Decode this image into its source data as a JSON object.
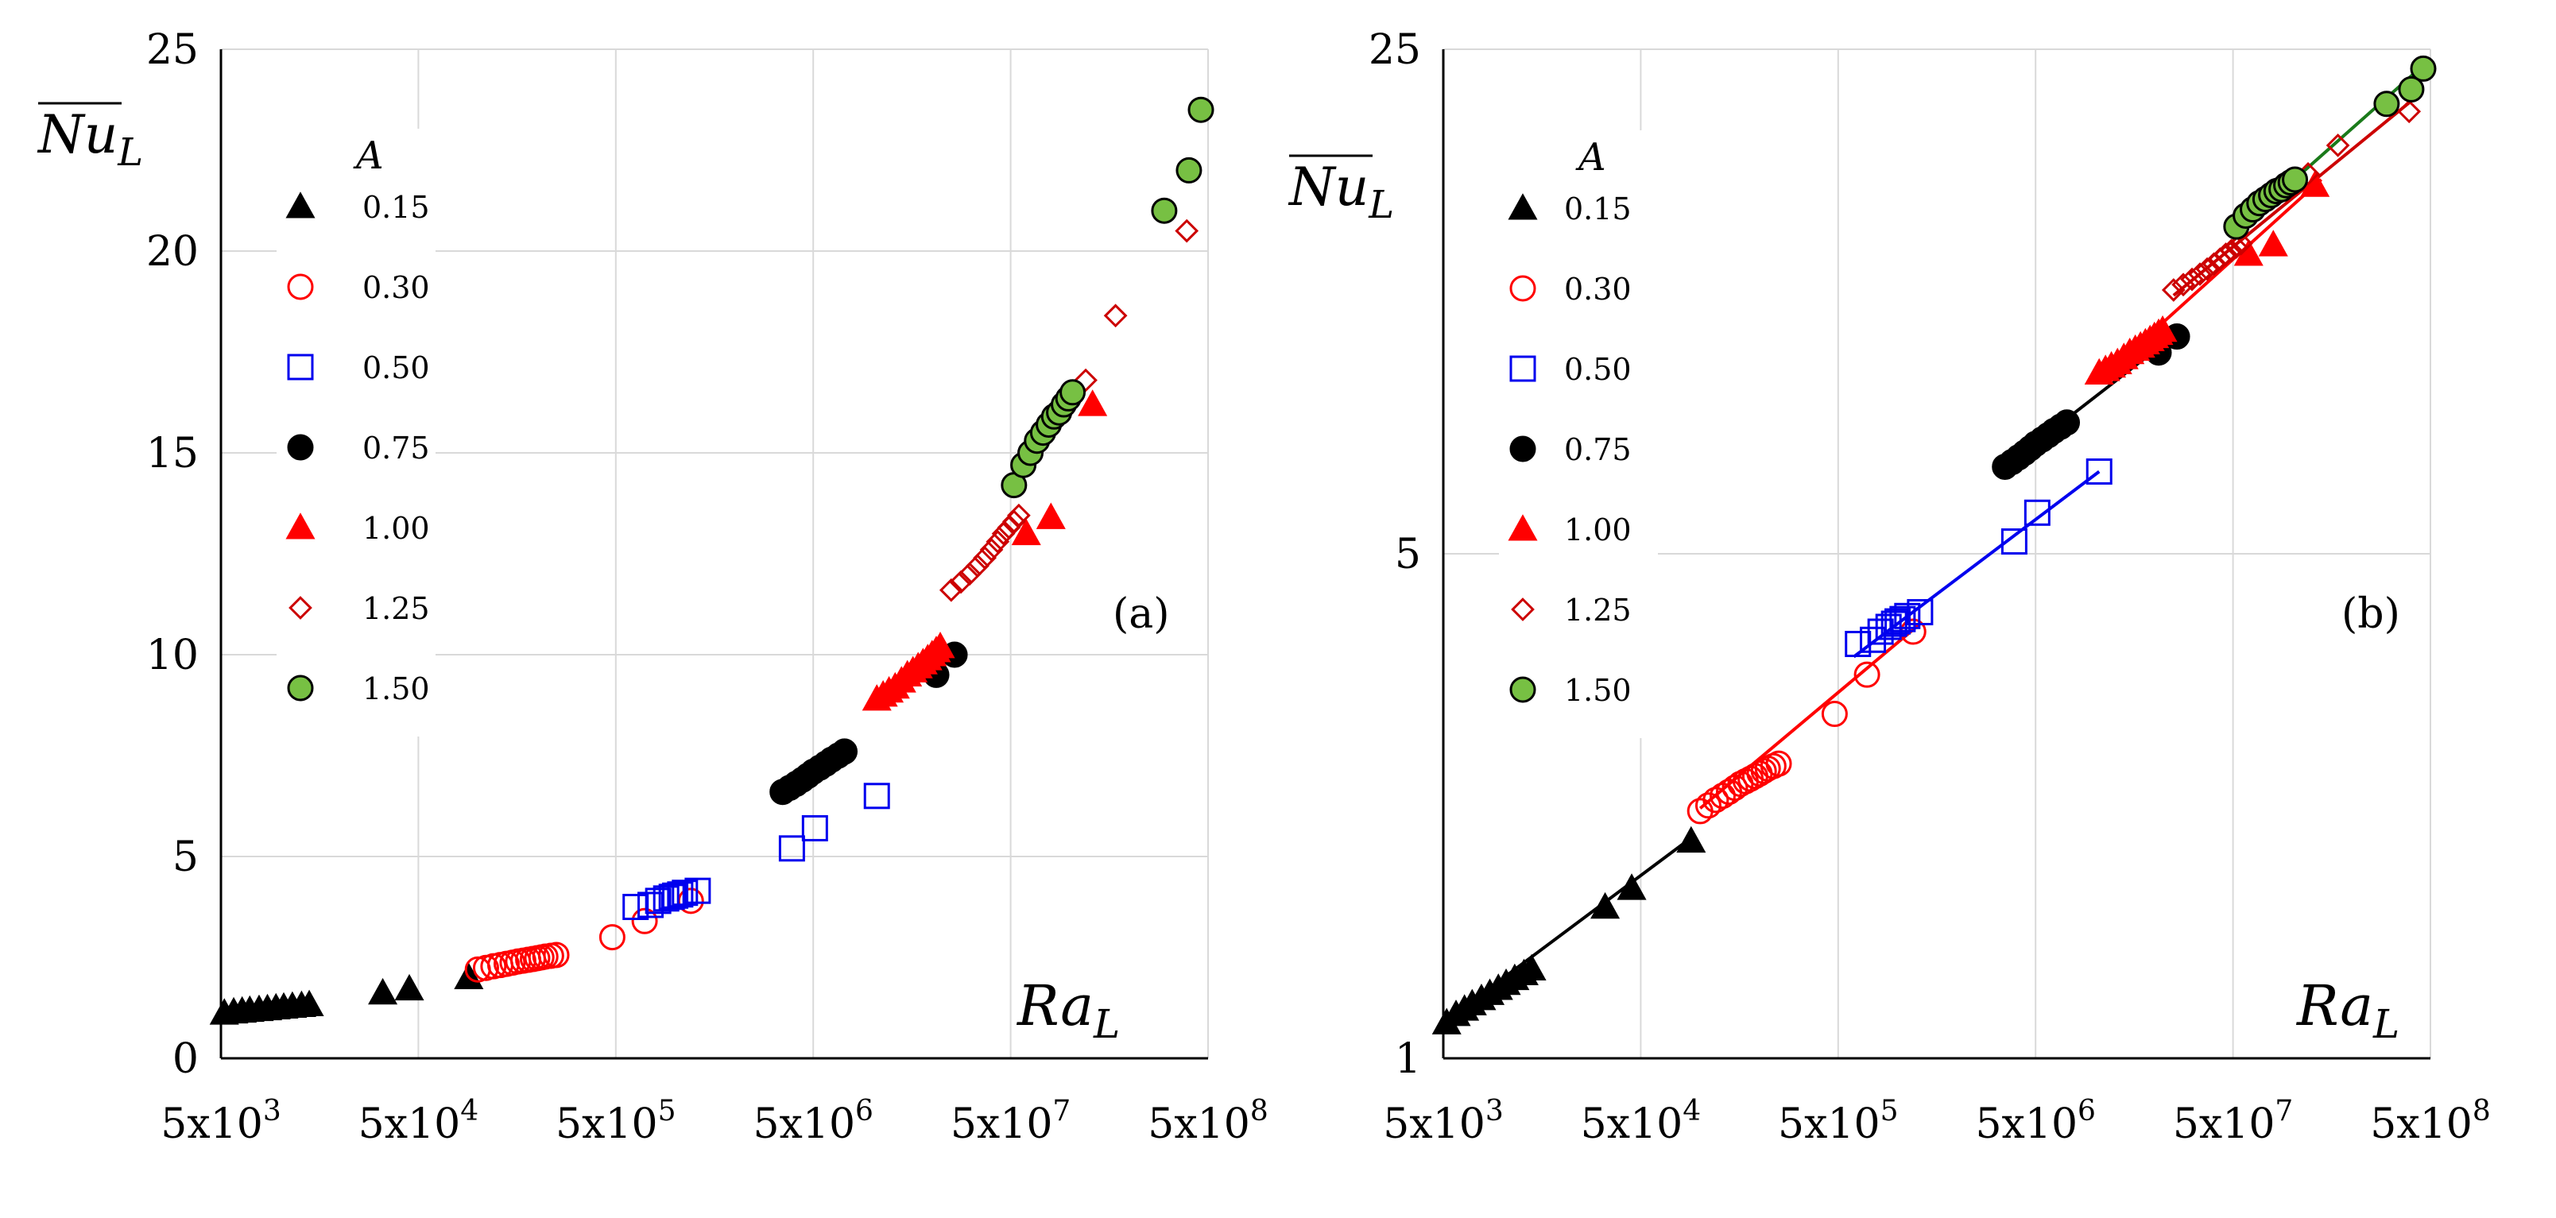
{
  "chart_data": [
    {
      "panel": "(a)",
      "type": "scatter",
      "xscale": "log",
      "yscale": "linear",
      "xlim": [
        5000,
        500000000
      ],
      "ylim": [
        0,
        25
      ],
      "xticks": [
        "5x10^3",
        "5x10^4",
        "5x10^5",
        "5x10^6",
        "5x10^7",
        "5x10^8"
      ],
      "yticks": [
        "0",
        "5",
        "10",
        "15",
        "20",
        "25"
      ],
      "ylabel_main": "Nu",
      "ylabel_sub": "L",
      "xlabel_main": "Ra",
      "xlabel_sub": "L",
      "legend_title": "A",
      "series": [
        {
          "name": "0.15",
          "marker": "triangle",
          "color": "#000000",
          "fill": "#000000",
          "x": [
            5200,
            5800,
            6400,
            7000,
            7800,
            8600,
            9500,
            10400,
            11500,
            12800,
            14000,
            33000,
            45000,
            90000
          ],
          "y": [
            1.12,
            1.15,
            1.17,
            1.19,
            1.21,
            1.23,
            1.25,
            1.27,
            1.29,
            1.31,
            1.33,
            1.62,
            1.72,
            2.0
          ]
        },
        {
          "name": "0.30",
          "marker": "circle",
          "color": "#ff0000",
          "fill": "none",
          "x": [
            100000,
            110000,
            120000,
            130000,
            140000,
            150000,
            160000,
            170000,
            180000,
            190000,
            200000,
            210000,
            220000,
            235000,
            250000,
            480000,
            700000,
            1200000
          ],
          "y": [
            2.2,
            2.24,
            2.28,
            2.31,
            2.34,
            2.37,
            2.4,
            2.42,
            2.44,
            2.46,
            2.48,
            2.5,
            2.52,
            2.54,
            2.56,
            3.0,
            3.4,
            3.9
          ]
        },
        {
          "name": "0.50",
          "marker": "square",
          "color": "#0000ee",
          "fill": "none",
          "x": [
            630000,
            750000,
            820000,
            900000,
            960000,
            1000000,
            1060000,
            1120000,
            1300000,
            3900000,
            5100000,
            10500000
          ],
          "y": [
            3.75,
            3.8,
            3.9,
            3.96,
            4.0,
            4.03,
            4.06,
            4.1,
            4.15,
            5.2,
            5.7,
            6.5
          ]
        },
        {
          "name": "0.75",
          "marker": "circle",
          "color": "#000000",
          "fill": "#000000",
          "x": [
            3500000,
            3800000,
            4100000,
            4400000,
            4700000,
            5000000,
            5400000,
            5800000,
            6200000,
            6700000,
            7200000,
            21000000,
            26000000
          ],
          "y": [
            6.6,
            6.7,
            6.8,
            6.9,
            7.0,
            7.1,
            7.2,
            7.3,
            7.4,
            7.5,
            7.6,
            9.5,
            10.0
          ]
        },
        {
          "name": "1.00",
          "marker": "triangle",
          "color": "#ff0000",
          "fill": "#ff0000",
          "x": [
            10500000,
            11300000,
            12100000,
            13000000,
            14000000,
            15000000,
            16000000,
            17000000,
            18000000,
            19000000,
            20000000,
            21000000,
            22000000,
            60000000,
            80000000,
            130000000
          ],
          "y": [
            8.9,
            9.0,
            9.1,
            9.2,
            9.35,
            9.5,
            9.6,
            9.7,
            9.8,
            9.9,
            10.0,
            10.1,
            10.2,
            13.0,
            13.4,
            16.2
          ]
        },
        {
          "name": "1.25",
          "marker": "diamond",
          "color": "#cc0000",
          "fill": "none",
          "x": [
            25000000,
            28000000,
            31000000,
            34000000,
            37000000,
            40000000,
            43000000,
            46000000,
            49000000,
            52000000,
            55000000,
            120000000,
            170000000,
            390000000
          ],
          "y": [
            11.6,
            11.8,
            12.0,
            12.2,
            12.4,
            12.6,
            12.8,
            13.0,
            13.15,
            13.3,
            13.45,
            16.8,
            18.4,
            20.5
          ]
        },
        {
          "name": "1.50",
          "marker": "circle",
          "color": "#000000",
          "fill": "#77c043",
          "x": [
            52000000,
            58000000,
            63000000,
            68000000,
            73000000,
            78000000,
            83000000,
            88000000,
            93000000,
            98000000,
            103000000,
            300000000,
            400000000,
            460000000
          ],
          "y": [
            14.2,
            14.7,
            15.0,
            15.3,
            15.5,
            15.7,
            15.9,
            16.0,
            16.2,
            16.35,
            16.5,
            21.0,
            22.0,
            23.5
          ]
        }
      ],
      "legend_items": [
        "0.15",
        "0.30",
        "0.50",
        "0.75",
        "1.00",
        "1.25",
        "1.50"
      ]
    },
    {
      "panel": "(b)",
      "type": "scatter",
      "xscale": "log",
      "yscale": "log",
      "xlim": [
        5000,
        500000000
      ],
      "ylim": [
        1,
        25
      ],
      "xticks": [
        "5x10^3",
        "5x10^4",
        "5x10^5",
        "5x10^6",
        "5x10^7",
        "5x10^8"
      ],
      "yticks": [
        "1",
        "5",
        "25"
      ],
      "ylabel_main": "Nu",
      "ylabel_sub": "L",
      "xlabel_main": "Ra",
      "xlabel_sub": "L",
      "legend_title": "A",
      "fit_lines": [
        {
          "name": "0.15",
          "color": "#000000",
          "x": [
            5000,
            90000
          ],
          "y": [
            1.12,
            2.02
          ]
        },
        {
          "name": "0.30",
          "color": "#ff0000",
          "x": [
            100000,
            1300000
          ],
          "y": [
            2.22,
            4.0
          ]
        },
        {
          "name": "0.50",
          "color": "#0000ee",
          "x": [
            600000,
            10500000
          ],
          "y": [
            3.6,
            6.5
          ]
        },
        {
          "name": "0.75",
          "color": "#000000",
          "x": [
            3500000,
            26000000
          ],
          "y": [
            6.6,
            10.1
          ]
        },
        {
          "name": "1.00",
          "color": "#ff0000",
          "x": [
            10500000,
            140000000
          ],
          "y": [
            8.7,
            16.5
          ]
        },
        {
          "name": "1.25",
          "color": "#cc0000",
          "x": [
            25000000,
            400000000
          ],
          "y": [
            11.4,
            21.2
          ]
        },
        {
          "name": "1.50",
          "color": "#1a7a1a",
          "x": [
            52000000,
            480000000
          ],
          "y": [
            14.0,
            24.0
          ]
        }
      ],
      "series": [
        {
          "name": "0.15",
          "marker": "triangle",
          "color": "#000000",
          "fill": "#000000",
          "x": [
            5200,
            5800,
            6400,
            7000,
            7800,
            8600,
            9500,
            10400,
            11500,
            12800,
            14000,
            33000,
            45000,
            90000
          ],
          "y": [
            1.12,
            1.15,
            1.17,
            1.19,
            1.21,
            1.23,
            1.25,
            1.27,
            1.29,
            1.31,
            1.33,
            1.62,
            1.72,
            2.0
          ]
        },
        {
          "name": "0.30",
          "marker": "circle",
          "color": "#ff0000",
          "fill": "none",
          "x": [
            100000,
            110000,
            120000,
            130000,
            140000,
            150000,
            160000,
            170000,
            180000,
            190000,
            200000,
            210000,
            220000,
            235000,
            250000,
            480000,
            700000,
            1200000
          ],
          "y": [
            2.2,
            2.24,
            2.28,
            2.31,
            2.34,
            2.37,
            2.4,
            2.42,
            2.44,
            2.46,
            2.48,
            2.5,
            2.52,
            2.54,
            2.56,
            3.0,
            3.4,
            3.9
          ]
        },
        {
          "name": "0.50",
          "marker": "square",
          "color": "#0000ee",
          "fill": "none",
          "x": [
            630000,
            750000,
            820000,
            900000,
            960000,
            1000000,
            1060000,
            1120000,
            1300000,
            3900000,
            5100000,
            10500000
          ],
          "y": [
            3.75,
            3.8,
            3.9,
            3.96,
            4.0,
            4.03,
            4.06,
            4.1,
            4.15,
            5.2,
            5.7,
            6.5
          ]
        },
        {
          "name": "0.75",
          "marker": "circle",
          "color": "#000000",
          "fill": "#000000",
          "x": [
            3500000,
            3800000,
            4100000,
            4400000,
            4700000,
            5000000,
            5400000,
            5800000,
            6200000,
            6700000,
            7200000,
            21000000,
            26000000
          ],
          "y": [
            6.6,
            6.7,
            6.8,
            6.9,
            7.0,
            7.1,
            7.2,
            7.3,
            7.4,
            7.5,
            7.6,
            9.5,
            10.0
          ]
        },
        {
          "name": "1.00",
          "marker": "triangle",
          "color": "#ff0000",
          "fill": "#ff0000",
          "x": [
            10500000,
            11300000,
            12100000,
            13000000,
            14000000,
            15000000,
            16000000,
            17000000,
            18000000,
            19000000,
            20000000,
            21000000,
            22000000,
            60000000,
            80000000,
            130000000
          ],
          "y": [
            8.9,
            9.0,
            9.1,
            9.2,
            9.35,
            9.5,
            9.6,
            9.7,
            9.8,
            9.9,
            10.0,
            10.1,
            10.2,
            13.0,
            13.4,
            16.2
          ]
        },
        {
          "name": "1.25",
          "marker": "diamond",
          "color": "#cc0000",
          "fill": "none",
          "x": [
            25000000,
            28000000,
            31000000,
            34000000,
            37000000,
            40000000,
            43000000,
            46000000,
            49000000,
            52000000,
            55000000,
            120000000,
            170000000,
            390000000
          ],
          "y": [
            11.6,
            11.8,
            12.0,
            12.2,
            12.4,
            12.6,
            12.8,
            13.0,
            13.15,
            13.3,
            13.45,
            16.8,
            18.4,
            20.5
          ]
        },
        {
          "name": "1.50",
          "marker": "circle",
          "color": "#000000",
          "fill": "#77c043",
          "x": [
            52000000,
            58000000,
            63000000,
            68000000,
            73000000,
            78000000,
            83000000,
            88000000,
            93000000,
            98000000,
            103000000,
            300000000,
            400000000,
            460000000
          ],
          "y": [
            14.2,
            14.7,
            15.0,
            15.3,
            15.5,
            15.7,
            15.9,
            16.0,
            16.2,
            16.35,
            16.5,
            21.0,
            22.0,
            23.5
          ]
        }
      ],
      "legend_items": [
        "0.15",
        "0.30",
        "0.50",
        "0.75",
        "1.00",
        "1.25",
        "1.50"
      ]
    }
  ]
}
